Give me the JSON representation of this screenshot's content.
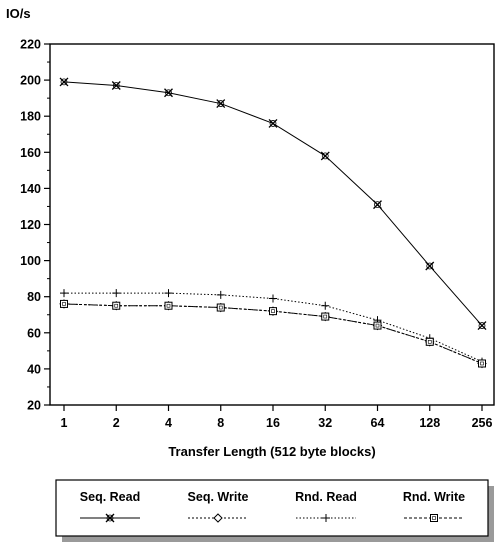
{
  "chart_data": {
    "type": "line",
    "ylabel": "IO/s",
    "xlabel": "Transfer Length (512 byte blocks)",
    "x_categories": [
      "1",
      "2",
      "4",
      "8",
      "16",
      "32",
      "64",
      "128",
      "256"
    ],
    "y_ticks": [
      "20",
      "40",
      "60",
      "80",
      "100",
      "120",
      "140",
      "160",
      "180",
      "200",
      "220"
    ],
    "ylim": [
      20,
      220
    ],
    "legend_position": "bottom",
    "series": [
      {
        "name": "Seq. Read",
        "marker": "x",
        "values": [
          199,
          197,
          193,
          187,
          176,
          158,
          131,
          97,
          64
        ]
      },
      {
        "name": "Seq. Write",
        "marker": "diamond",
        "values": [
          76,
          75,
          75,
          74,
          72,
          69,
          64,
          55,
          43
        ]
      },
      {
        "name": "Rnd. Read",
        "marker": "plus",
        "values": [
          82,
          82,
          82,
          81,
          79,
          75,
          67,
          57,
          44
        ]
      },
      {
        "name": "Rnd. Write",
        "marker": "square",
        "values": [
          76,
          75,
          75,
          74,
          72,
          69,
          64,
          55,
          43
        ]
      }
    ]
  }
}
